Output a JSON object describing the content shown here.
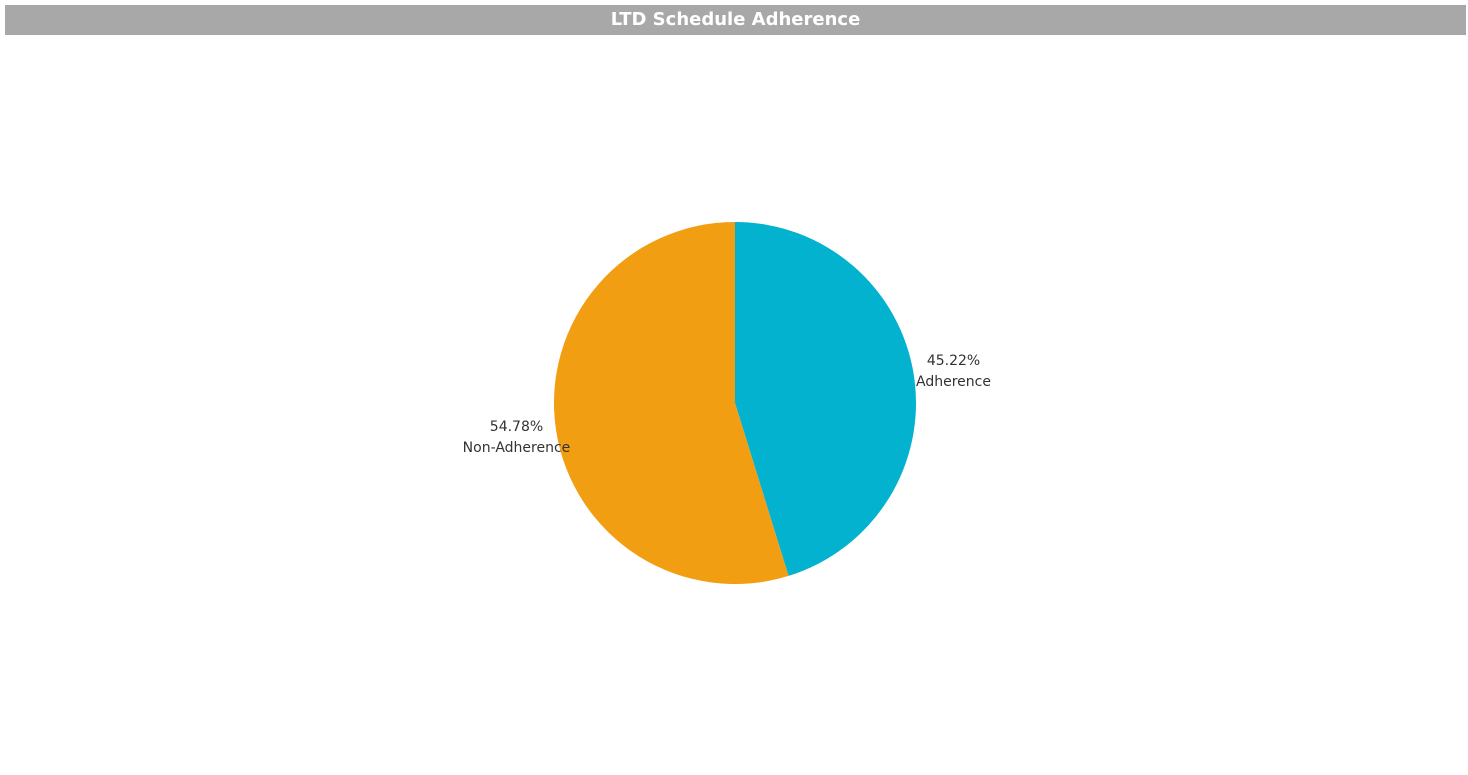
{
  "title": "LTD Schedule Adherence",
  "chart_data": {
    "type": "pie",
    "title": "LTD Schedule Adherence",
    "slices": [
      {
        "label": "Adherence",
        "value": 45.22,
        "value_text": "45.22%",
        "color": "#02b2cf"
      },
      {
        "label": "Non-Adherence",
        "value": 54.78,
        "value_text": "54.78%",
        "color": "#f29e12"
      }
    ],
    "start_angle": "top (12 o'clock)",
    "direction": "clockwise",
    "legend": "none"
  }
}
